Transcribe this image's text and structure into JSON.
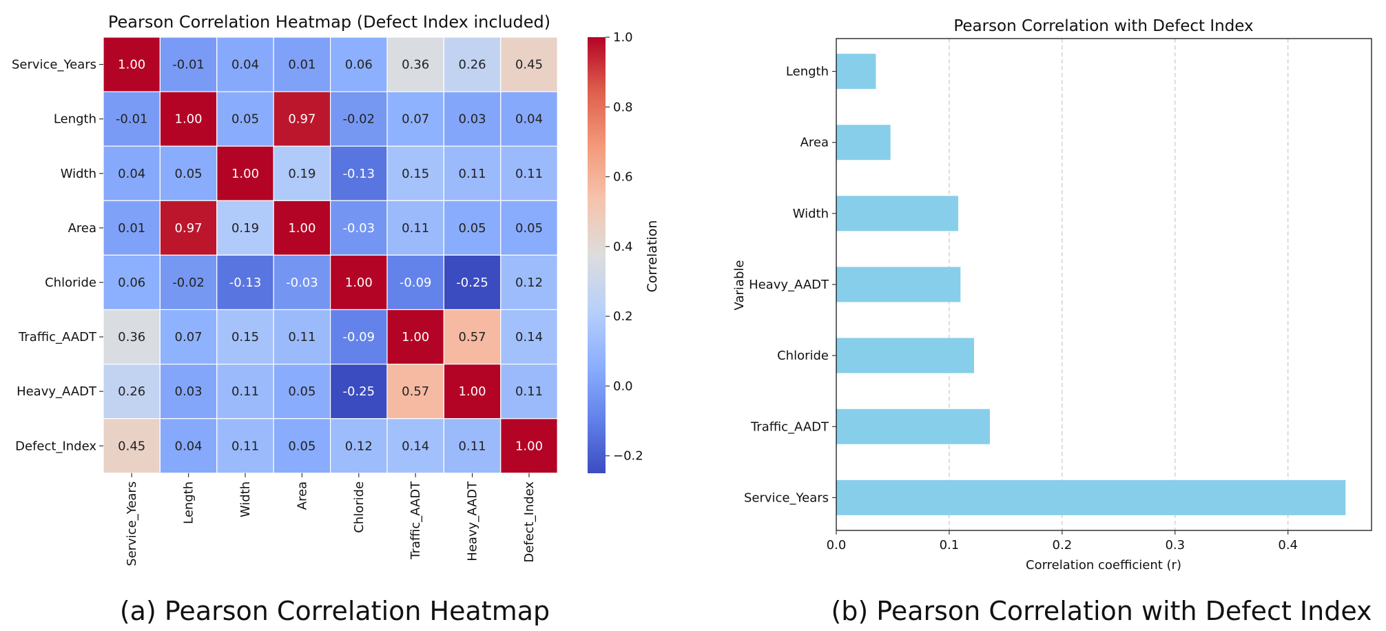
{
  "captions": {
    "a": "(a) Pearson Correlation Heatmap",
    "b": "(b) Pearson Correlation with Defect Index"
  },
  "chart_data": [
    {
      "type": "heatmap",
      "title": "Pearson Correlation Heatmap (Defect Index included)",
      "variables": [
        "Service_Years",
        "Length",
        "Width",
        "Area",
        "Chloride",
        "Traffic_AADT",
        "Heavy_AADT",
        "Defect_Index"
      ],
      "values": [
        [
          1.0,
          -0.01,
          0.04,
          0.01,
          0.06,
          0.36,
          0.26,
          0.45
        ],
        [
          -0.01,
          1.0,
          0.05,
          0.97,
          -0.02,
          0.07,
          0.03,
          0.04
        ],
        [
          0.04,
          0.05,
          1.0,
          0.19,
          -0.13,
          0.15,
          0.11,
          0.11
        ],
        [
          0.01,
          0.97,
          0.19,
          1.0,
          -0.03,
          0.11,
          0.05,
          0.05
        ],
        [
          0.06,
          -0.02,
          -0.13,
          -0.03,
          1.0,
          -0.09,
          -0.25,
          0.12
        ],
        [
          0.36,
          0.07,
          0.15,
          0.11,
          -0.09,
          1.0,
          0.57,
          0.14
        ],
        [
          0.26,
          0.03,
          0.11,
          0.05,
          -0.25,
          0.57,
          1.0,
          0.11
        ],
        [
          0.45,
          0.04,
          0.11,
          0.05,
          0.12,
          0.14,
          0.11,
          1.0
        ]
      ],
      "colormap": "coolwarm",
      "vmin": -0.25,
      "vmax": 1.0,
      "colorbar": {
        "label": "Correlation",
        "ticks": [
          -0.2,
          0.0,
          0.2,
          0.4,
          0.6,
          0.8,
          1.0
        ],
        "tick_labels": [
          "−0.2",
          "0.0",
          "0.2",
          "0.4",
          "0.6",
          "0.8",
          "1.0"
        ]
      }
    },
    {
      "type": "bar",
      "orientation": "horizontal",
      "title": "Pearson Correlation with Defect Index",
      "categories": [
        "Service_Years",
        "Traffic_AADT",
        "Chloride",
        "Heavy_AADT",
        "Width",
        "Area",
        "Length"
      ],
      "values": [
        0.451,
        0.136,
        0.122,
        0.11,
        0.108,
        0.048,
        0.035
      ],
      "xlabel": "Correlation coefficient (r)",
      "ylabel": "Variable",
      "xlim": [
        0,
        0.474
      ],
      "xticks": [
        0.0,
        0.1,
        0.2,
        0.3,
        0.4
      ],
      "xtick_labels": [
        "0.0",
        "0.1",
        "0.2",
        "0.3",
        "0.4"
      ],
      "grid": "x dashed",
      "bar_color": "#87ceeb"
    }
  ]
}
